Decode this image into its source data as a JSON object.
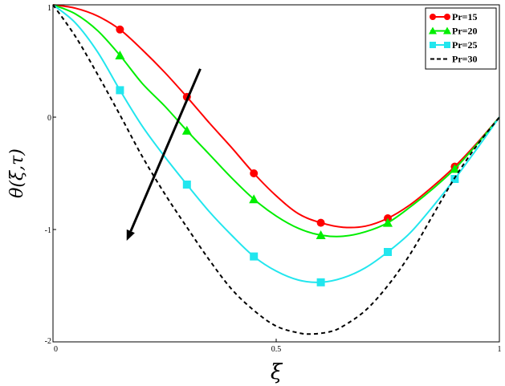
{
  "chart_data": {
    "type": "line",
    "xlabel": "ξ",
    "ylabel": "θ(ξ,τ)",
    "xlim": [
      0,
      1
    ],
    "ylim": [
      -2,
      1
    ],
    "x_ticks": [
      "0",
      "0.5",
      "1"
    ],
    "y_ticks": [
      "1",
      "0",
      "-1",
      "-2"
    ],
    "grid": false,
    "legend": "top-right",
    "series": [
      {
        "name": "Pr=15",
        "color": "#ff0000",
        "marker": "circle",
        "line": "solid",
        "x": [
          0,
          0.05,
          0.1,
          0.15,
          0.2,
          0.25,
          0.3,
          0.35,
          0.4,
          0.45,
          0.5,
          0.55,
          0.6,
          0.65,
          0.7,
          0.75,
          0.8,
          0.85,
          0.9,
          0.95,
          1.0
        ],
        "y": [
          1.0,
          0.97,
          0.9,
          0.78,
          0.6,
          0.4,
          0.18,
          -0.05,
          -0.27,
          -0.5,
          -0.7,
          -0.86,
          -0.94,
          -0.98,
          -0.97,
          -0.9,
          -0.78,
          -0.62,
          -0.44,
          -0.23,
          0.0
        ],
        "marker_x": [
          0.15,
          0.3,
          0.45,
          0.6,
          0.75,
          0.9
        ],
        "marker_y": [
          0.78,
          0.18,
          -0.5,
          -0.94,
          -0.9,
          -0.44
        ]
      },
      {
        "name": "Pr=20",
        "color": "#00ee00",
        "marker": "triangle",
        "line": "solid",
        "x": [
          0,
          0.05,
          0.1,
          0.15,
          0.2,
          0.25,
          0.3,
          0.35,
          0.4,
          0.45,
          0.5,
          0.55,
          0.6,
          0.65,
          0.7,
          0.75,
          0.8,
          0.85,
          0.9,
          0.95,
          1.0
        ],
        "y": [
          1.0,
          0.92,
          0.77,
          0.55,
          0.3,
          0.1,
          -0.12,
          -0.33,
          -0.54,
          -0.73,
          -0.88,
          -0.99,
          -1.05,
          -1.06,
          -1.02,
          -0.94,
          -0.8,
          -0.64,
          -0.46,
          -0.24,
          0.0
        ],
        "marker_x": [
          0.15,
          0.3,
          0.45,
          0.6,
          0.75,
          0.9
        ],
        "marker_y": [
          0.55,
          -0.12,
          -0.73,
          -1.05,
          -0.94,
          -0.46
        ]
      },
      {
        "name": "Pr=25",
        "color": "#22e6ee",
        "marker": "square",
        "line": "solid",
        "x": [
          0,
          0.05,
          0.1,
          0.15,
          0.2,
          0.25,
          0.3,
          0.35,
          0.4,
          0.45,
          0.5,
          0.55,
          0.6,
          0.65,
          0.7,
          0.75,
          0.8,
          0.85,
          0.9,
          0.95,
          1.0
        ],
        "y": [
          1.0,
          0.84,
          0.58,
          0.24,
          -0.08,
          -0.35,
          -0.6,
          -0.84,
          -1.05,
          -1.24,
          -1.37,
          -1.45,
          -1.47,
          -1.43,
          -1.34,
          -1.2,
          -1.03,
          -0.8,
          -0.55,
          -0.28,
          0.0
        ],
        "marker_x": [
          0.15,
          0.3,
          0.45,
          0.6,
          0.75,
          0.9
        ],
        "marker_y": [
          0.24,
          -0.6,
          -1.24,
          -1.47,
          -1.2,
          -0.55
        ]
      },
      {
        "name": "Pr=30",
        "color": "#000000",
        "marker": "none",
        "line": "dashed",
        "x": [
          0,
          0.05,
          0.1,
          0.15,
          0.2,
          0.25,
          0.3,
          0.35,
          0.4,
          0.45,
          0.5,
          0.55,
          0.58,
          0.62,
          0.65,
          0.7,
          0.75,
          0.8,
          0.85,
          0.9,
          0.95,
          1.0
        ],
        "y": [
          1.0,
          0.72,
          0.38,
          0.02,
          -0.35,
          -0.68,
          -0.98,
          -1.27,
          -1.53,
          -1.72,
          -1.86,
          -1.92,
          -1.93,
          -1.91,
          -1.86,
          -1.72,
          -1.5,
          -1.22,
          -0.88,
          -0.54,
          -0.25,
          0.0
        ]
      }
    ],
    "annotations": [
      {
        "type": "arrow",
        "from": [
          0.33,
          0.43
        ],
        "to": [
          0.165,
          -1.1
        ]
      }
    ]
  }
}
